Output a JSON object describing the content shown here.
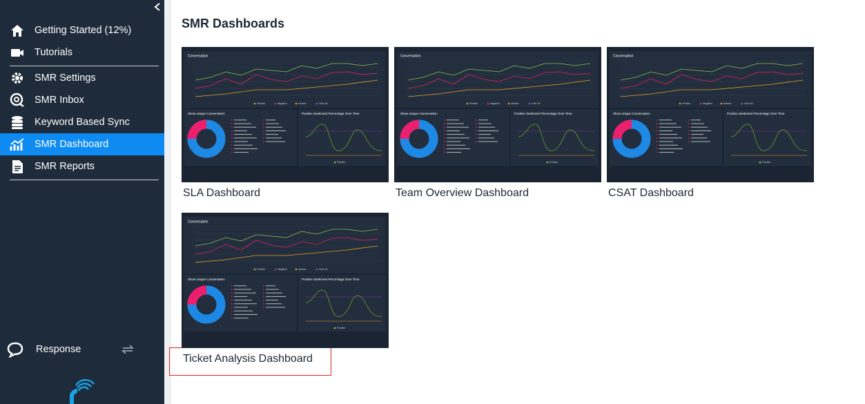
{
  "sidebar": {
    "items": [
      {
        "label": "Getting Started (12%)"
      },
      {
        "label": "Tutorials"
      },
      {
        "label": "SMR Settings"
      },
      {
        "label": "SMR Inbox"
      },
      {
        "label": "Keyword Based Sync"
      },
      {
        "label": "SMR Dashboard",
        "active": true
      },
      {
        "label": "SMR Reports"
      }
    ],
    "footer": {
      "label": "Response"
    }
  },
  "header": {
    "title": "SMR Dashboards"
  },
  "dashboards": [
    {
      "label": "SLA Dashboard"
    },
    {
      "label": "Team Overview Dashboard"
    },
    {
      "label": "CSAT Dashboard"
    },
    {
      "label": "Ticket Analysis Dashboard",
      "highlighted": true
    }
  ],
  "thumbnail": {
    "top_title": "Conversation",
    "legend": [
      "Positive",
      "Negative",
      "Neutral",
      "Over All"
    ],
    "donut_title": "Show unique Conversation",
    "right_title": "Positive Sentiment Percentage Over Time",
    "right_legend": "Positive"
  }
}
